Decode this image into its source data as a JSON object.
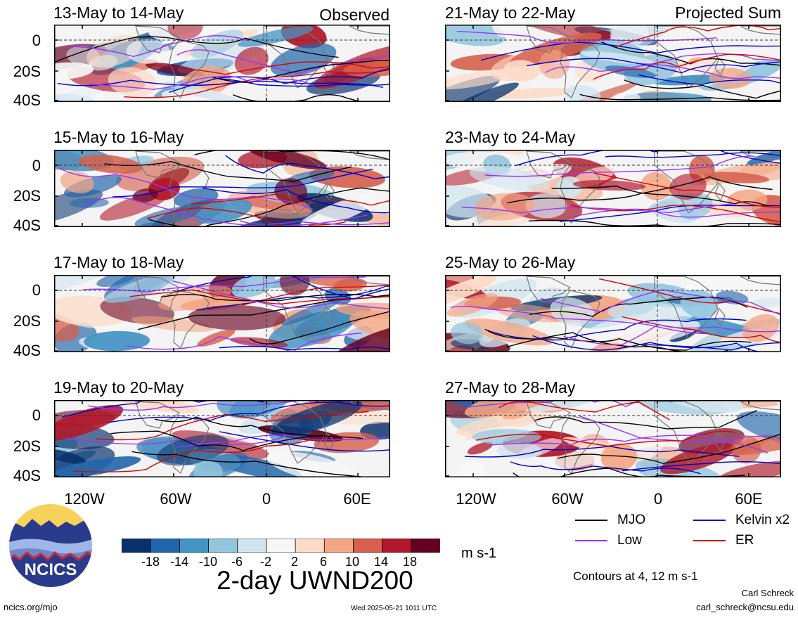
{
  "panels": [
    {
      "title": "13-May to 14-May",
      "corner": "Observed"
    },
    {
      "title": "15-May to 16-May",
      "corner": ""
    },
    {
      "title": "17-May to 18-May",
      "corner": ""
    },
    {
      "title": "19-May to 20-May",
      "corner": ""
    },
    {
      "title": "21-May to 22-May",
      "corner": "Projected Sum"
    },
    {
      "title": "23-May to 24-May",
      "corner": ""
    },
    {
      "title": "25-May to 26-May",
      "corner": ""
    },
    {
      "title": "27-May to 28-May",
      "corner": ""
    }
  ],
  "lat_labels": [
    "0",
    "20S",
    "40S"
  ],
  "lon_labels": [
    "120W",
    "60W",
    "0",
    "60E"
  ],
  "legend": {
    "mjo": {
      "label": "MJO",
      "color": "#000000"
    },
    "kelvin": {
      "label": "Kelvin x2",
      "color": "#0000cc"
    },
    "low": {
      "label": "Low",
      "color": "#9933ff"
    },
    "er": {
      "label": "ER",
      "color": "#dd0000"
    },
    "contours_note": "Contours at 4, 12 m s-1"
  },
  "colorbar": {
    "labels": [
      "-18",
      "-14",
      "-10",
      "-6",
      "-2",
      "2",
      "6",
      "10",
      "14",
      "18"
    ],
    "colors": [
      "#08306b",
      "#2166ac",
      "#4393c3",
      "#92c5de",
      "#d1e5f0",
      "#f7f7f7",
      "#fddbc7",
      "#f4a582",
      "#d6604d",
      "#b2182b",
      "#67001f"
    ],
    "units": "m s-1"
  },
  "main_title": "2-day UWND200",
  "logo_text": "NCICS",
  "footer": {
    "left": "ncics.org/mjo",
    "center": "Wed 2025-05-21 1011 UTC",
    "author": "Carl Schreck",
    "email": "carl_schreck@ncsu.edu"
  }
}
